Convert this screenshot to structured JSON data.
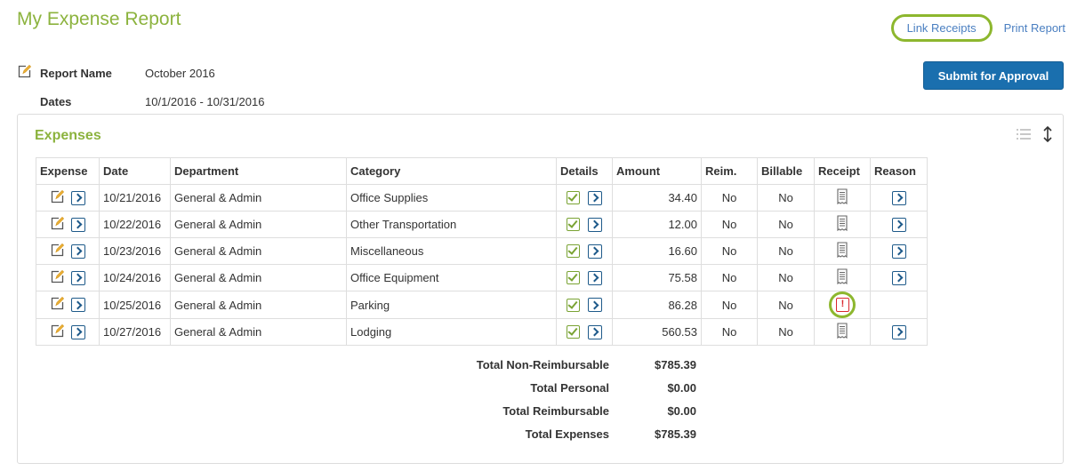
{
  "header": {
    "title": "My Expense Report",
    "link_receipts": "Link Receipts",
    "print_report": "Print Report",
    "submit_label": "Submit for Approval"
  },
  "report": {
    "name_label": "Report Name",
    "name_value": "October 2016",
    "dates_label": "Dates",
    "dates_value": "10/1/2016 - 10/31/2016"
  },
  "expenses": {
    "title": "Expenses",
    "columns": [
      "Expense",
      "Date",
      "Department",
      "Category",
      "Details",
      "Amount",
      "Reim.",
      "Billable",
      "Receipt",
      "Reason"
    ],
    "rows": [
      {
        "date": "10/21/2016",
        "department": "General & Admin",
        "category": "Office Supplies",
        "amount": "34.40",
        "reim": "No",
        "billable": "No",
        "receipt": "receipt-icon",
        "reason": true
      },
      {
        "date": "10/22/2016",
        "department": "General & Admin",
        "category": "Other Transportation",
        "amount": "12.00",
        "reim": "No",
        "billable": "No",
        "receipt": "receipt-icon",
        "reason": true
      },
      {
        "date": "10/23/2016",
        "department": "General & Admin",
        "category": "Miscellaneous",
        "amount": "16.60",
        "reim": "No",
        "billable": "No",
        "receipt": "receipt-icon",
        "reason": true
      },
      {
        "date": "10/24/2016",
        "department": "General & Admin",
        "category": "Office Equipment",
        "amount": "75.58",
        "reim": "No",
        "billable": "No",
        "receipt": "receipt-icon",
        "reason": true
      },
      {
        "date": "10/25/2016",
        "department": "General & Admin",
        "category": "Parking",
        "amount": "86.28",
        "reim": "No",
        "billable": "No",
        "receipt": "missing-receipt-alert-icon",
        "receipt_alert_glyph": "!",
        "reason": false
      },
      {
        "date": "10/27/2016",
        "department": "General & Admin",
        "category": "Lodging",
        "amount": "560.53",
        "reim": "No",
        "billable": "No",
        "receipt": "receipt-icon",
        "reason": true
      }
    ]
  },
  "totals": [
    {
      "label": "Total Non-Reimbursable",
      "value": "$785.39"
    },
    {
      "label": "Total Personal",
      "value": "$0.00"
    },
    {
      "label": "Total Reimbursable",
      "value": "$0.00"
    },
    {
      "label": "Total Expenses",
      "value": "$785.39"
    }
  ],
  "colors": {
    "title_green": "#8cb33e",
    "link_blue": "#4a7fc1",
    "button_blue": "#1a6fae",
    "highlight_green": "#8db72e",
    "alert_red": "#d9272e"
  }
}
